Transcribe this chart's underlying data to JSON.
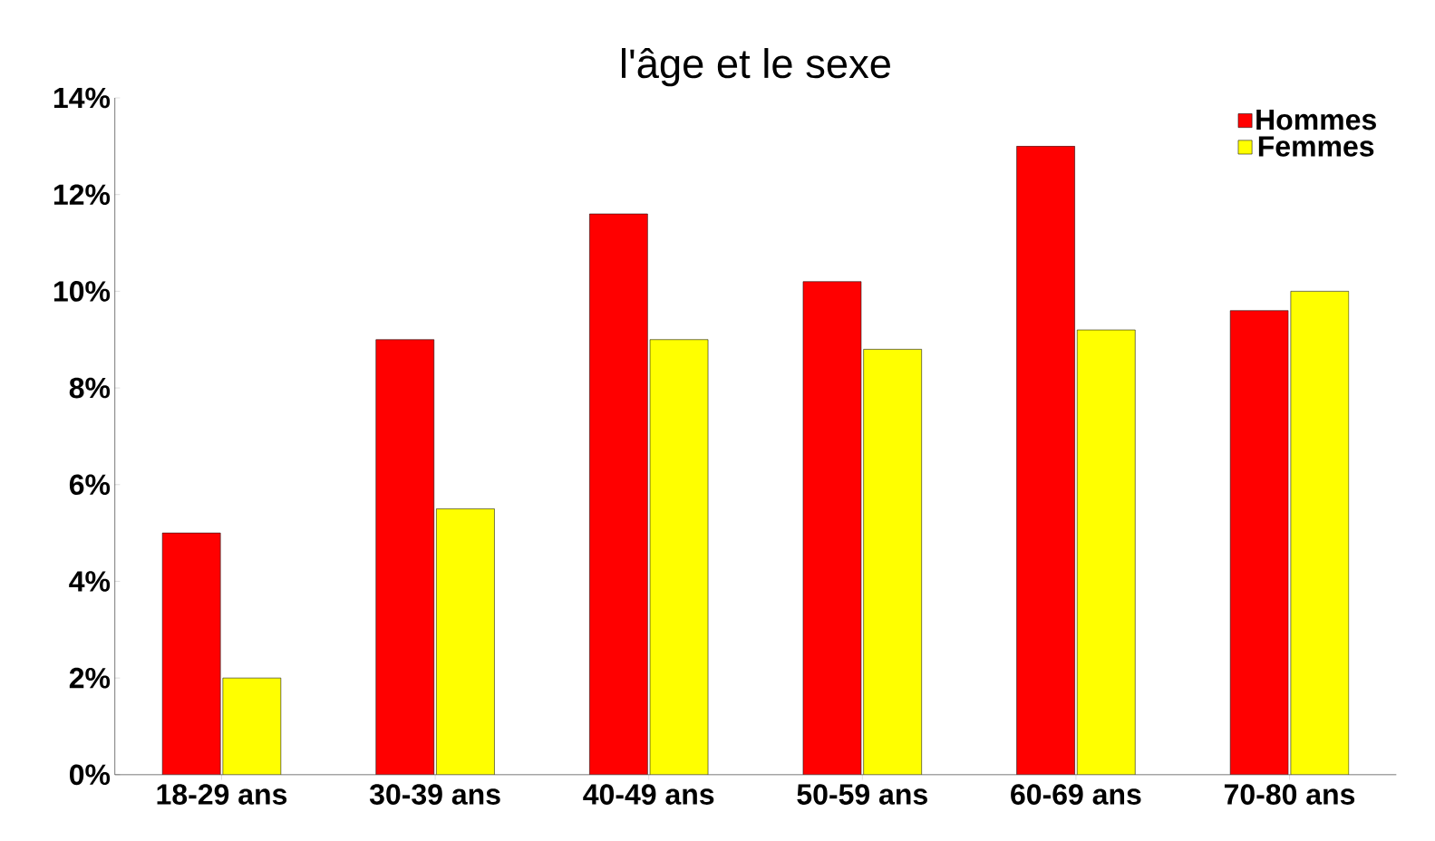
{
  "chart_data": {
    "type": "bar",
    "title": "l'âge et le sexe",
    "categories": [
      "18-29 ans",
      "30-39 ans",
      "40-49 ans",
      "50-59 ans",
      "60-69 ans",
      "70-80 ans"
    ],
    "series": [
      {
        "name": "Hommes",
        "color": "#ff0000",
        "values": [
          5,
          9,
          11.6,
          10.2,
          13,
          9.6
        ]
      },
      {
        "name": "Femmes",
        "color": "#ffff00",
        "values": [
          2,
          5.5,
          9,
          8.8,
          9.2,
          10
        ]
      }
    ],
    "ylim": [
      0,
      14
    ],
    "yticks": [
      {
        "value": 0,
        "label": "0%"
      },
      {
        "value": 2,
        "label": "2%"
      },
      {
        "value": 4,
        "label": "4%"
      },
      {
        "value": 6,
        "label": "6%"
      },
      {
        "value": 8,
        "label": "8%"
      },
      {
        "value": 10,
        "label": "10%"
      },
      {
        "value": 12,
        "label": "12%"
      },
      {
        "value": 14,
        "label": "14%"
      }
    ],
    "legend": "top right",
    "grid": false
  }
}
